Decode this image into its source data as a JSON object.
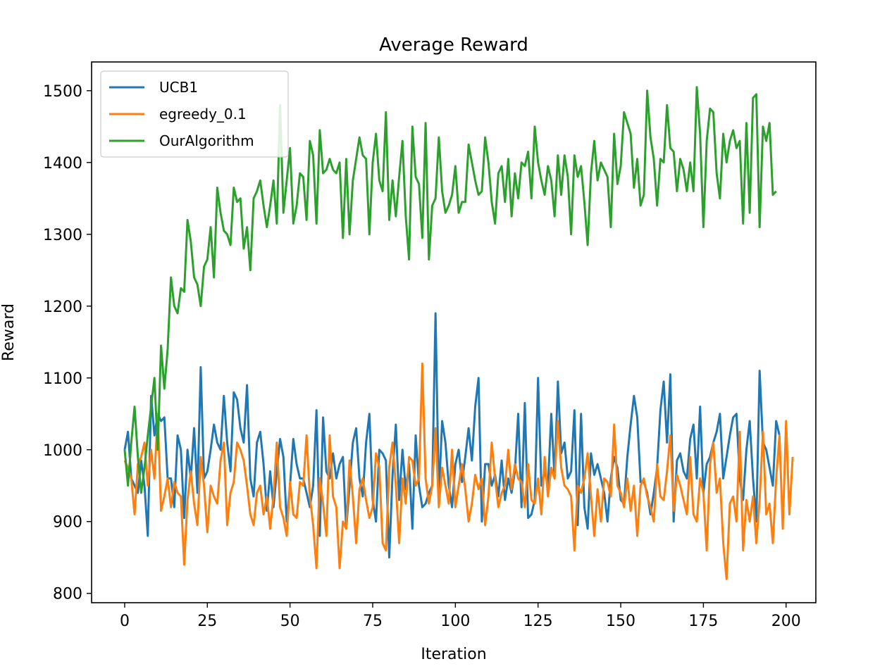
{
  "chart_data": {
    "type": "line",
    "title": "Average Reward",
    "xlabel": "Iteration",
    "ylabel": "Reward",
    "xlim": [
      -10,
      209
    ],
    "ylim": [
      787,
      1540
    ],
    "xticks": [
      0,
      25,
      50,
      75,
      100,
      125,
      150,
      175,
      200
    ],
    "yticks": [
      800,
      900,
      1000,
      1100,
      1200,
      1300,
      1400,
      1500
    ],
    "xtick_labels": [
      "0",
      "25",
      "50",
      "75",
      "100",
      "125",
      "150",
      "175",
      "200"
    ],
    "ytick_labels": [
      "800",
      "900",
      "1000",
      "1100",
      "1200",
      "1300",
      "1400",
      "1500"
    ],
    "legend_position": "top-left",
    "grid": false,
    "series": [
      {
        "name": "UCB1",
        "color": "#1f77b4",
        "x_start": 0,
        "values": [
          1000,
          1025,
          960,
          950,
          940,
          985,
          950,
          880,
          1075,
          1020,
          1050,
          1040,
          1045,
          960,
          960,
          920,
          1020,
          1000,
          905,
          1000,
          960,
          1030,
          940,
          1115,
          960,
          970,
          1000,
          1035,
          1010,
          1000,
          1075,
          1010,
          970,
          1080,
          1070,
          1030,
          1010,
          1090,
          960,
          935,
          1010,
          1025,
          980,
          915,
          970,
          920,
          970,
          1015,
          990,
          900,
          950,
          1015,
          980,
          960,
          960,
          940,
          920,
          950,
          1055,
          880,
          1045,
          970,
          960,
          995,
          960,
          980,
          990,
          890,
          950,
          1010,
          1030,
          960,
          935,
          1010,
          1050,
          930,
          900,
          1000,
          995,
          985,
          850,
          965,
          1035,
          930,
          1000,
          945,
          980,
          890,
          1020,
          950,
          920,
          925,
          940,
          950,
          1190,
          935,
          1040,
          1010,
          950,
          920,
          980,
          1000,
          955,
          990,
          1030,
          985,
          1060,
          1100,
          900,
          980,
          980,
          950,
          965,
          935,
          985,
          930,
          960,
          940,
          970,
          1050,
          920,
          1065,
          905,
          910,
          930,
          1100,
          950,
          970,
          950,
          1050,
          960,
          1095,
          995,
          1010,
          960,
          970,
          1055,
          895,
          1050,
          920,
          890,
          995,
          965,
          980,
          960,
          940,
          900,
          960,
          990,
          975,
          930,
          925,
          990,
          1035,
          1075,
          1045,
          955,
          955,
          940,
          910,
          940,
          975,
          1055,
          1095,
          1010,
          1105,
          900,
          985,
          995,
          970,
          960,
          1015,
          1035,
          960,
          1060,
          940,
          980,
          990,
          1010,
          1025,
          1050,
          960,
          990,
          1020,
          1045,
          1050,
          960,
          930,
          1000,
          1040,
          960,
          900,
          1110,
          1010,
          1000,
          975,
          950,
          1040,
          1020
        ]
      },
      {
        "name": "egreedy_0.1",
        "color": "#ff7f0e",
        "x_start": 0,
        "values": [
          985,
          975,
          960,
          910,
          980,
          990,
          1010,
          950,
          1000,
          960,
          1050,
          915,
          935,
          960,
          920,
          955,
          940,
          935,
          840,
          930,
          970,
          925,
          895,
          990,
          950,
          885,
          950,
          935,
          925,
          985,
          1010,
          895,
          940,
          955,
          1010,
          1000,
          985,
          950,
          910,
          895,
          940,
          950,
          910,
          935,
          890,
          935,
          1010,
          920,
          905,
          880,
          955,
          910,
          905,
          955,
          950,
          1020,
          935,
          895,
          835,
          960,
          925,
          880,
          1020,
          935,
          920,
          835,
          900,
          890,
          985,
          935,
          870,
          945,
          960,
          930,
          905,
          920,
          995,
          975,
          870,
          860,
          975,
          1010,
          950,
          870,
          960,
          925,
          990,
          985,
          950,
          960,
          1120,
          960,
          925,
          950,
          1030,
          920,
          975,
          950,
          925,
          1000,
          920,
          950,
          980,
          945,
          900,
          925,
          965,
          945,
          960,
          895,
          935,
          1010,
          960,
          920,
          940,
          950,
          1000,
          945,
          980,
          960,
          955,
          920,
          980,
          930,
          925,
          960,
          910,
          990,
          935,
          975,
          960,
          1040,
          975,
          950,
          945,
          935,
          860,
          950,
          940,
          960,
          995,
          935,
          880,
          945,
          900,
          960,
          955,
          935,
          1035,
          950,
          940,
          920,
          960,
          915,
          950,
          880,
          950,
          960,
          935,
          920,
          900,
          980,
          935,
          930,
          970,
          1020,
          915,
          965,
          950,
          930,
          910,
          990,
          910,
          900,
          960,
          940,
          860,
          980,
          1010,
          940,
          960,
          870,
          820,
          925,
          935,
          900,
          1025,
          860,
          930,
          900,
          935,
          870,
          930,
          1025,
          910,
          925,
          870,
          960,
          1020,
          890,
          1040,
          910,
          990
        ]
      },
      {
        "name": "OurAlgorithm",
        "color": "#2ca02c",
        "x_start": 0,
        "values": [
          1000,
          950,
          1010,
          1060,
          990,
          940,
          975,
          1020,
          1060,
          1100,
          1000,
          1145,
          1085,
          1140,
          1240,
          1200,
          1190,
          1225,
          1220,
          1320,
          1290,
          1240,
          1230,
          1200,
          1255,
          1265,
          1310,
          1240,
          1365,
          1330,
          1305,
          1300,
          1285,
          1365,
          1345,
          1350,
          1280,
          1310,
          1250,
          1350,
          1360,
          1375,
          1340,
          1310,
          1340,
          1375,
          1315,
          1480,
          1330,
          1375,
          1420,
          1315,
          1340,
          1385,
          1380,
          1320,
          1430,
          1410,
          1315,
          1445,
          1385,
          1390,
          1405,
          1390,
          1385,
          1400,
          1295,
          1405,
          1300,
          1375,
          1405,
          1435,
          1410,
          1405,
          1300,
          1400,
          1440,
          1375,
          1360,
          1470,
          1320,
          1375,
          1325,
          1380,
          1430,
          1325,
          1265,
          1450,
          1380,
          1370,
          1295,
          1455,
          1265,
          1340,
          1350,
          1435,
          1360,
          1330,
          1340,
          1355,
          1395,
          1330,
          1345,
          1345,
          1425,
          1400,
          1375,
          1355,
          1360,
          1435,
          1400,
          1345,
          1315,
          1385,
          1395,
          1345,
          1405,
          1325,
          1385,
          1350,
          1400,
          1395,
          1415,
          1350,
          1450,
          1400,
          1375,
          1355,
          1395,
          1375,
          1325,
          1410,
          1355,
          1410,
          1380,
          1300,
          1410,
          1380,
          1395,
          1345,
          1285,
          1385,
          1430,
          1375,
          1400,
          1390,
          1380,
          1310,
          1440,
          1370,
          1395,
          1470,
          1455,
          1440,
          1365,
          1405,
          1340,
          1355,
          1500,
          1435,
          1405,
          1340,
          1405,
          1400,
          1480,
          1420,
          1415,
          1360,
          1405,
          1390,
          1360,
          1400,
          1360,
          1505,
          1440,
          1310,
          1430,
          1475,
          1470,
          1385,
          1350,
          1440,
          1400,
          1430,
          1445,
          1420,
          1430,
          1315,
          1455,
          1330,
          1490,
          1495,
          1310,
          1450,
          1430,
          1455,
          1355,
          1360
        ]
      }
    ]
  }
}
